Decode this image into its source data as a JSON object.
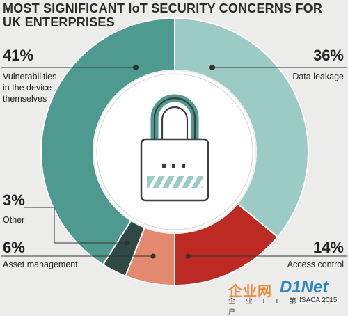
{
  "title": "MOST SIGNIFICANT IoT SECURITY CONCERNS FOR UK ENTERPRISES",
  "chart_data": {
    "type": "pie",
    "style": "donut",
    "slices": [
      {
        "label": "Data leakage",
        "percent": "36%",
        "value": 36,
        "color": "#9ccbc6"
      },
      {
        "label": "Access control",
        "percent": "14%",
        "value": 14,
        "color": "#bd2a24"
      },
      {
        "label": "Asset management",
        "percent": "6%",
        "value": 6,
        "color": "#e38a6e"
      },
      {
        "label": "Other",
        "percent": "3%",
        "value": 3,
        "color": "#2f4a45"
      },
      {
        "label": "Vulnerabilities in the device themselves",
        "percent": "41%",
        "value": 41,
        "color": "#4f9a90"
      }
    ]
  },
  "labels": {
    "vuln_pct": "41%",
    "vuln_l1": "Vulnerabilities",
    "vuln_l2": "in the device",
    "vuln_l3": "themselves",
    "data_pct": "36%",
    "data_lbl": "Data leakage",
    "other_pct": "3%",
    "other_lbl": "Other",
    "asset_pct": "6%",
    "asset_lbl": "Asset management",
    "access_pct": "14%",
    "access_lbl": "Access control"
  },
  "center_icon": "padlock-icon",
  "watermark": {
    "main": "企业网",
    "net": "D1Net",
    "sub": "企 业 I T 第 一 门 户",
    "isaca": "ISACA 2015"
  }
}
